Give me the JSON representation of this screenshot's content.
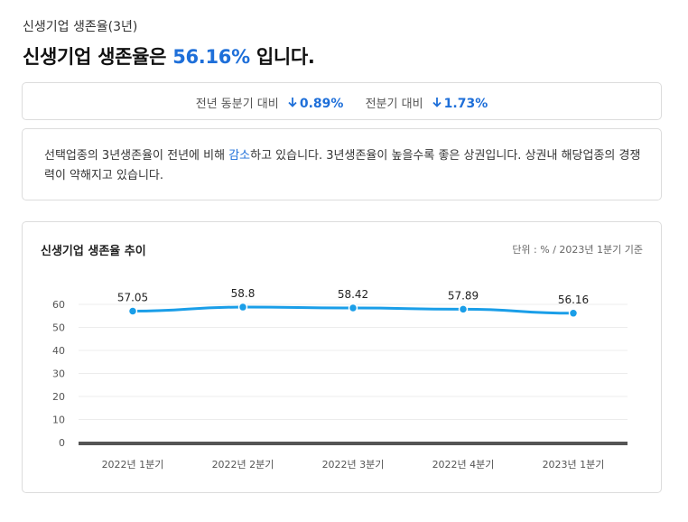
{
  "header": {
    "subtitle": "신생기업 생존율(3년)",
    "title_prefix": "신생기업 생존율은 ",
    "title_value": "56.16%",
    "title_suffix": " 입니다."
  },
  "compare": {
    "items": [
      {
        "label": "전년 동분기 대비",
        "arrow": "down-arrow-icon",
        "value": "0.89%"
      },
      {
        "label": "전분기 대비",
        "arrow": "down-arrow-icon",
        "value": "1.73%"
      }
    ]
  },
  "description": {
    "part1": "선택업종의 3년생존율이 전년에 비해 ",
    "keyword": "감소",
    "part2": "하고 있습니다. 3년생존율이 높을수록 좋은 상권입니다. 상권내 해당업종의 경쟁력이 약해지고 있습니다."
  },
  "chart_header": {
    "title": "신생기업 생존율 추이",
    "unit_note": "단위 : % / 2023년 1분기 기준"
  },
  "colors": {
    "accent": "#1e6fd9",
    "line": "#1a9ee8",
    "baseline": "#555555"
  },
  "chart_data": {
    "type": "line",
    "title": "신생기업 생존율 추이",
    "categories": [
      "2022년 1분기",
      "2022년 2분기",
      "2022년 3분기",
      "2022년 4분기",
      "2023년 1분기"
    ],
    "series": [
      {
        "values": [
          57.05,
          58.8,
          58.42,
          57.89,
          56.16
        ],
        "labels": [
          "57.05",
          "58.8",
          "58.42",
          "57.89",
          "56.16"
        ]
      }
    ],
    "yticks": [
      "0",
      "10",
      "20",
      "30",
      "40",
      "50",
      "60"
    ],
    "ylim": [
      0,
      60
    ],
    "grid": true,
    "legend": "none"
  }
}
